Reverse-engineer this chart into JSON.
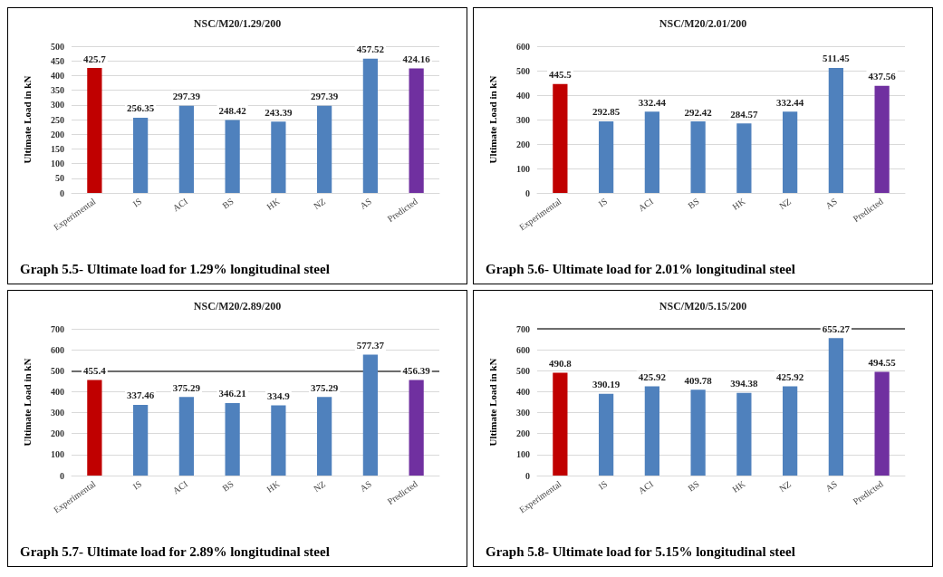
{
  "chart_data": [
    {
      "type": "bar",
      "title": "NSC/M20/1.29/200",
      "ylabel": "Ultimate Load in kN",
      "annotations": [
        "Graph 5.5- Ultimate load for 1.29% longitudinal steel"
      ],
      "categories": [
        "Experimental",
        "IS",
        "ACI",
        "BS",
        "HK",
        "NZ",
        "AS",
        "Predicted"
      ],
      "values": [
        425.7,
        256.35,
        297.39,
        248.42,
        243.39,
        297.39,
        457.52,
        424.16
      ],
      "colors": [
        "#c00000",
        "#4f81bd",
        "#4f81bd",
        "#4f81bd",
        "#4f81bd",
        "#4f81bd",
        "#4f81bd",
        "#7030a0"
      ],
      "ylim": [
        0,
        500
      ],
      "yticks": [
        0,
        50,
        100,
        150,
        200,
        250,
        300,
        350,
        400,
        450,
        500
      ],
      "grid": "y",
      "data_labels": true
    },
    {
      "type": "bar",
      "title": "NSC/M20/2.01/200",
      "ylabel": "Ultimate Load in kN",
      "annotations": [
        "Graph 5.6- Ultimate load for 2.01% longitudinal steel"
      ],
      "categories": [
        "Experimental",
        "IS",
        "ACI",
        "BS",
        "HK",
        "NZ",
        "AS",
        "Predicted"
      ],
      "values": [
        445.5,
        292.85,
        332.44,
        292.42,
        284.57,
        332.44,
        511.45,
        437.56
      ],
      "colors": [
        "#c00000",
        "#4f81bd",
        "#4f81bd",
        "#4f81bd",
        "#4f81bd",
        "#4f81bd",
        "#4f81bd",
        "#7030a0"
      ],
      "ylim": [
        0,
        600
      ],
      "yticks": [
        0,
        100,
        200,
        300,
        400,
        500,
        600
      ],
      "grid": "y",
      "data_labels": true
    },
    {
      "type": "bar",
      "title": "NSC/M20/2.89/200",
      "ylabel": "Ultimate Load in kN",
      "annotations": [
        "Graph 5.7- Ultimate load for 2.89% longitudinal steel"
      ],
      "categories": [
        "Experimental",
        "IS",
        "ACI",
        "BS",
        "HK",
        "NZ",
        "AS",
        "Predicted"
      ],
      "values": [
        455.4,
        337.46,
        375.29,
        346.21,
        334.9,
        375.29,
        577.37,
        456.39
      ],
      "colors": [
        "#c00000",
        "#4f81bd",
        "#4f81bd",
        "#4f81bd",
        "#4f81bd",
        "#4f81bd",
        "#4f81bd",
        "#7030a0"
      ],
      "ylim": [
        0,
        700
      ],
      "yticks": [
        0,
        100,
        200,
        300,
        400,
        500,
        600,
        700
      ],
      "grid": "y",
      "data_labels": true,
      "ref_lines": [
        {
          "axis": "y",
          "value": 500,
          "color": "#404040"
        }
      ]
    },
    {
      "type": "bar",
      "title": "NSC/M20/5.15/200",
      "ylabel": "Ultimate Load in kN",
      "annotations": [
        "Graph 5.8- Ultimate load for 5.15% longitudinal steel"
      ],
      "categories": [
        "Experimental",
        "IS",
        "ACI",
        "BS",
        "HK",
        "NZ",
        "AS",
        "Predicted"
      ],
      "values": [
        490.8,
        390.19,
        425.92,
        409.78,
        394.38,
        425.92,
        655.27,
        494.55
      ],
      "colors": [
        "#c00000",
        "#4f81bd",
        "#4f81bd",
        "#4f81bd",
        "#4f81bd",
        "#4f81bd",
        "#4f81bd",
        "#7030a0"
      ],
      "ylim": [
        0,
        700
      ],
      "yticks": [
        0,
        100,
        200,
        300,
        400,
        500,
        600,
        700
      ],
      "grid": "y",
      "data_labels": true,
      "ref_lines": [
        {
          "axis": "y",
          "value": 700,
          "color": "#404040"
        }
      ]
    }
  ]
}
